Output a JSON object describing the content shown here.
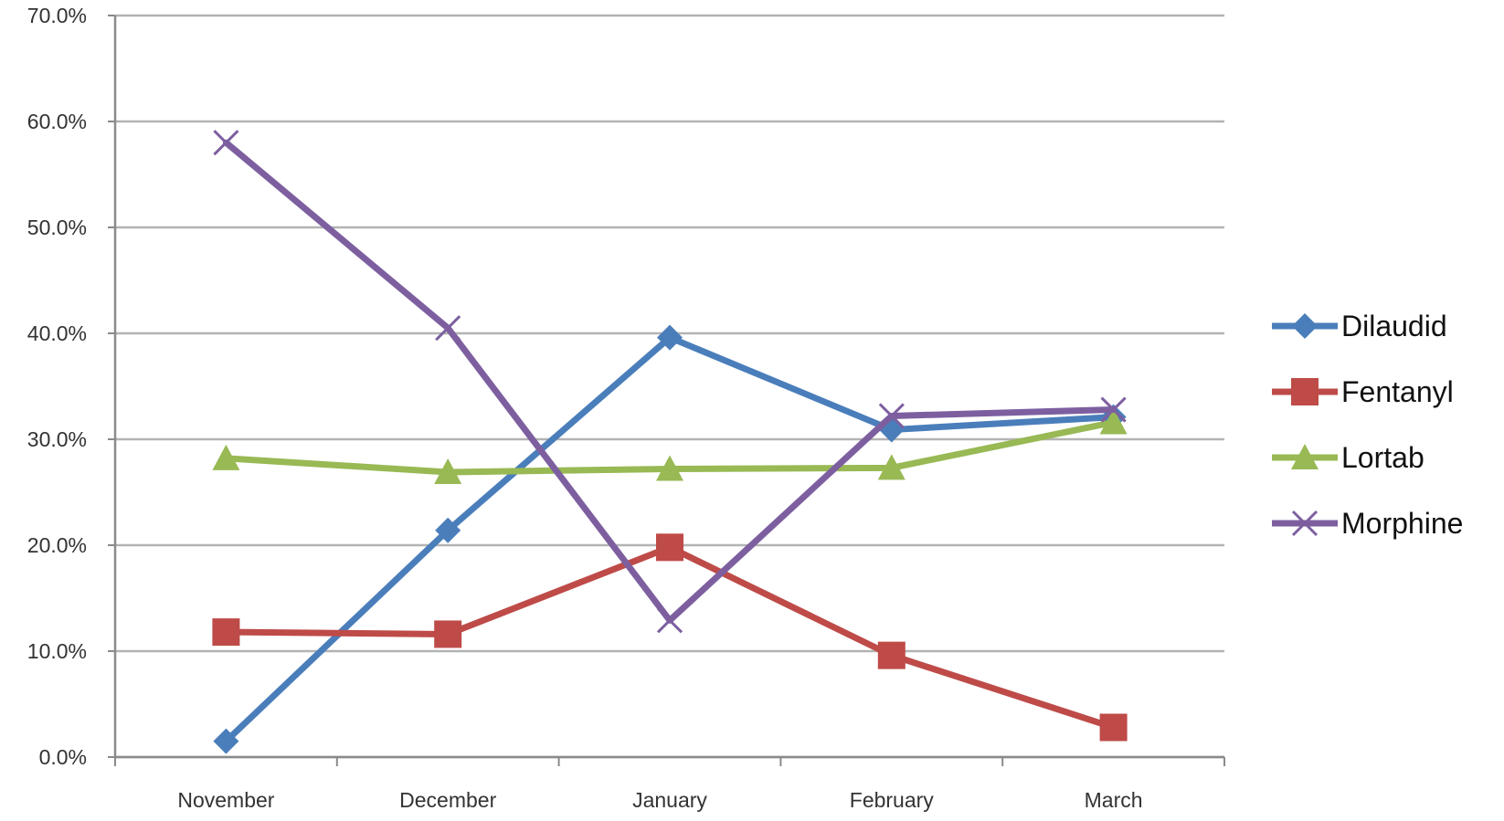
{
  "chart_data": {
    "type": "line",
    "categories": [
      "November",
      "December",
      "January",
      "February",
      "March"
    ],
    "y_ticks": [
      "0.0%",
      "10.0%",
      "20.0%",
      "30.0%",
      "40.0%",
      "50.0%",
      "60.0%",
      "70.0%"
    ],
    "ylim": [
      0,
      70
    ],
    "grid": true,
    "legend_position": "right",
    "series": [
      {
        "name": "Dilaudid",
        "color": "#4a7ebb",
        "marker": "diamond",
        "values": [
          1.5,
          21.4,
          39.6,
          30.9,
          32.1
        ]
      },
      {
        "name": "Fentanyl",
        "color": "#be4b48",
        "marker": "square",
        "values": [
          11.8,
          11.6,
          19.8,
          9.6,
          2.8
        ]
      },
      {
        "name": "Lortab",
        "color": "#98b954",
        "marker": "triangle",
        "values": [
          28.2,
          26.9,
          27.2,
          27.3,
          31.6
        ]
      },
      {
        "name": "Morphine",
        "color": "#7d5fa0",
        "marker": "x",
        "values": [
          58.0,
          40.5,
          12.9,
          32.2,
          32.8
        ]
      }
    ]
  }
}
